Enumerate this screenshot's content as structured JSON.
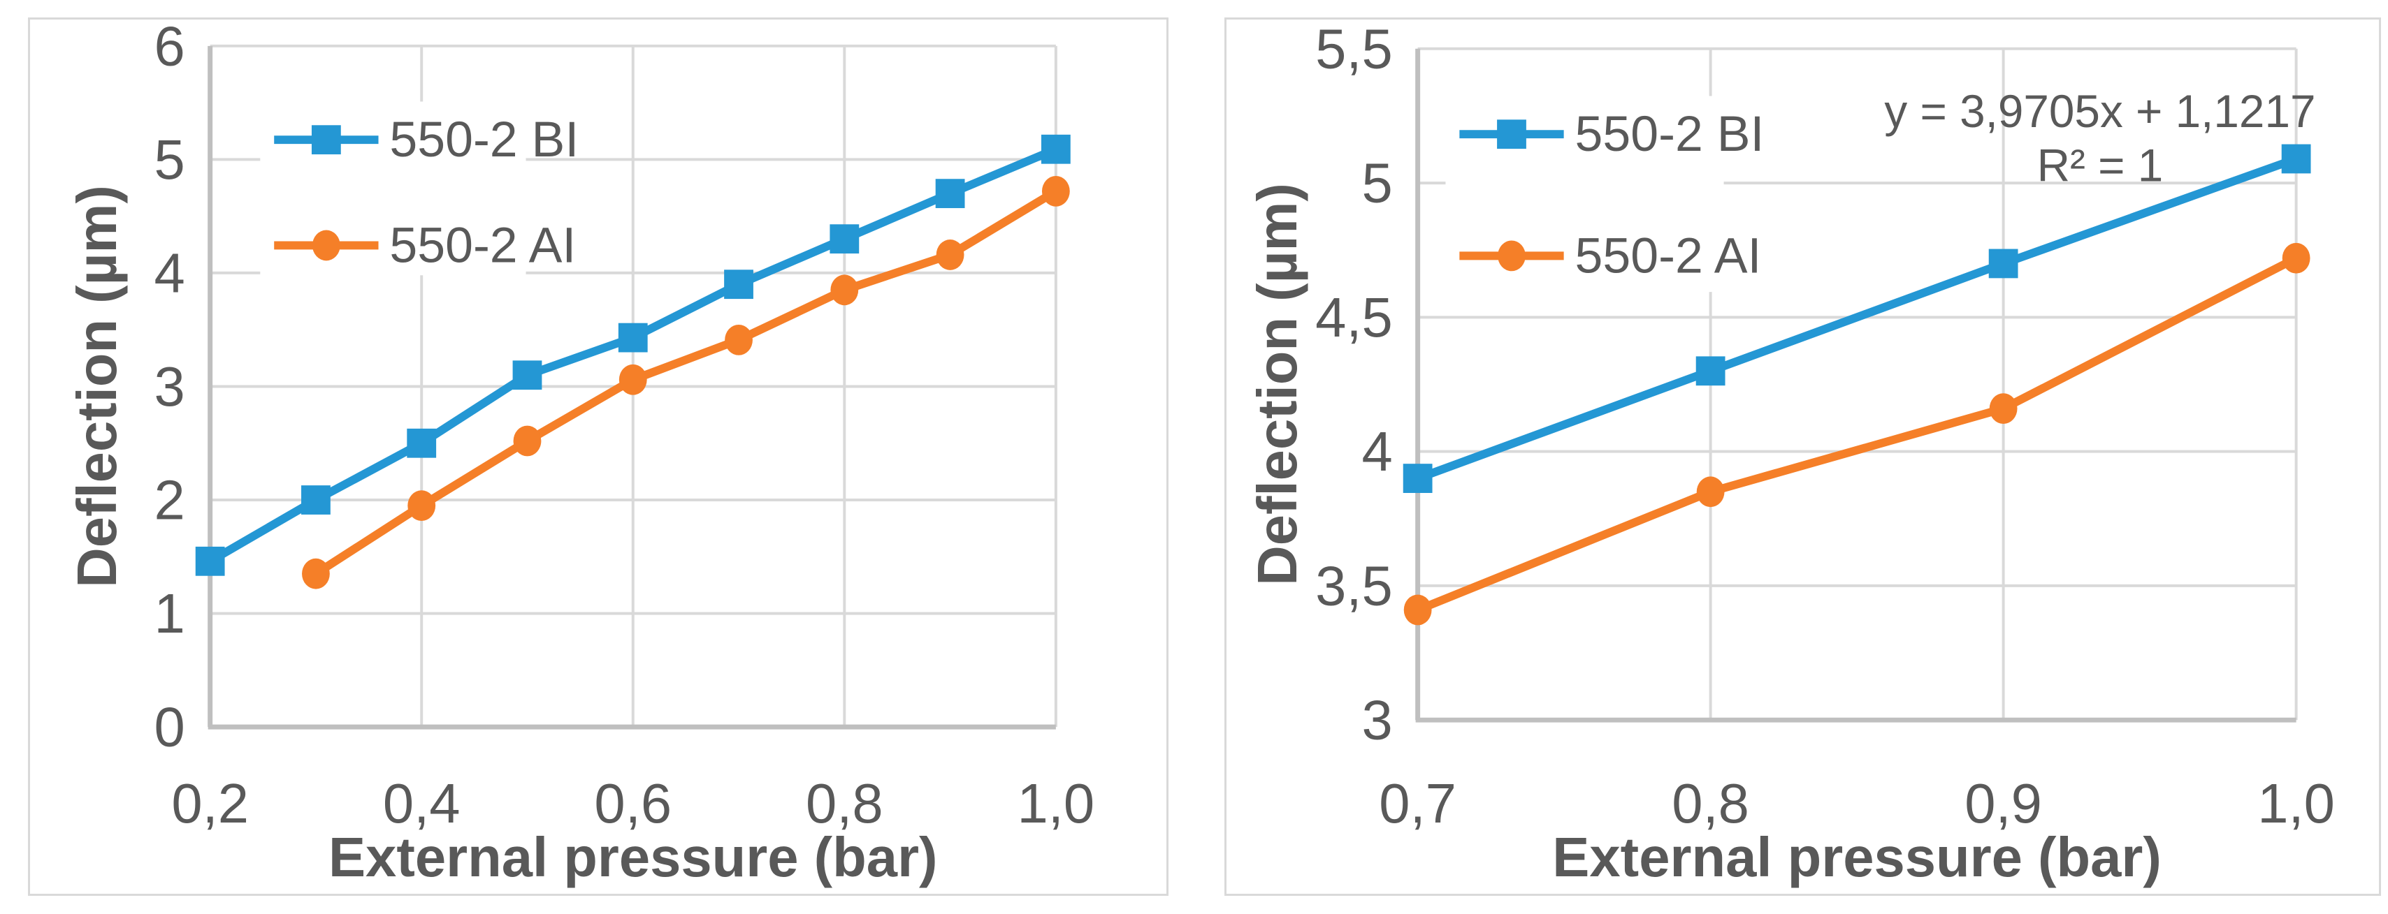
{
  "page": {
    "background": "#ffffff"
  },
  "colors": {
    "text": "#595959",
    "gridline": "#d9d9d9",
    "axis_line": "#bfbfbf",
    "panel_border": "#d9d9d9",
    "series_blue": "#2497d4",
    "series_orange": "#f57f28",
    "legend_background": "#ffffff"
  },
  "chart_data": [
    {
      "type": "line",
      "title": "",
      "xlabel": "External pressure (bar)",
      "ylabel": "Deflection  (µm)",
      "x_range": [
        0.2,
        1.0
      ],
      "y_range": [
        0,
        6
      ],
      "x_ticks": [
        0.2,
        0.4,
        0.6,
        0.8,
        1.0
      ],
      "x_tick_labels": [
        "0,2",
        "0,4",
        "0,6",
        "0,8",
        "1,0"
      ],
      "x_gridlines": [
        0.4,
        0.6,
        0.8,
        1.0
      ],
      "y_ticks": [
        0,
        1,
        2,
        3,
        4,
        5,
        6
      ],
      "y_tick_labels": [
        "0",
        "1",
        "2",
        "3",
        "4",
        "5",
        "6"
      ],
      "grid": true,
      "legend_position": "inside-top-left",
      "series": [
        {
          "name": "550-2 BI",
          "marker": "square",
          "color": "#2497d4",
          "x": [
            0.2,
            0.3,
            0.4,
            0.5,
            0.6,
            0.7,
            0.8,
            0.9,
            1.0
          ],
          "y": [
            1.46,
            2.0,
            2.5,
            3.1,
            3.43,
            3.9,
            4.3,
            4.7,
            5.09
          ]
        },
        {
          "name": "550-2 AI",
          "marker": "circle",
          "color": "#f57f28",
          "x": [
            0.3,
            0.4,
            0.5,
            0.6,
            0.7,
            0.8,
            0.9,
            1.0
          ],
          "y": [
            1.35,
            1.95,
            2.52,
            3.06,
            3.41,
            3.85,
            4.16,
            4.72
          ]
        }
      ]
    },
    {
      "type": "line",
      "title": "",
      "xlabel": "External pressure (bar)",
      "ylabel": "Deflection  (µm)",
      "x_range": [
        0.7,
        1.0
      ],
      "y_range": [
        3,
        5.5
      ],
      "x_ticks": [
        0.7,
        0.8,
        0.9,
        1.0
      ],
      "x_tick_labels": [
        "0,7",
        "0,8",
        "0,9",
        "1,0"
      ],
      "x_gridlines": [
        0.8,
        0.9,
        1.0
      ],
      "y_ticks": [
        3,
        3.5,
        4,
        4.5,
        5,
        5.5
      ],
      "y_tick_labels": [
        "3",
        "3,5",
        "4",
        "4,5",
        "5",
        "5,5"
      ],
      "grid": true,
      "legend_position": "inside-top-left",
      "series": [
        {
          "name": "550-2 BI",
          "marker": "square",
          "color": "#2497d4",
          "x": [
            0.7,
            0.8,
            0.9,
            1.0
          ],
          "y": [
            3.9,
            4.3,
            4.7,
            5.09
          ]
        },
        {
          "name": "550-2 AI",
          "marker": "circle",
          "color": "#f57f28",
          "x": [
            0.7,
            0.8,
            0.9,
            1.0
          ],
          "y": [
            3.41,
            3.85,
            4.16,
            4.72
          ]
        }
      ],
      "annotation": {
        "lines": [
          "y = 3,9705x + 1,1217",
          "R² = 1"
        ]
      }
    }
  ]
}
